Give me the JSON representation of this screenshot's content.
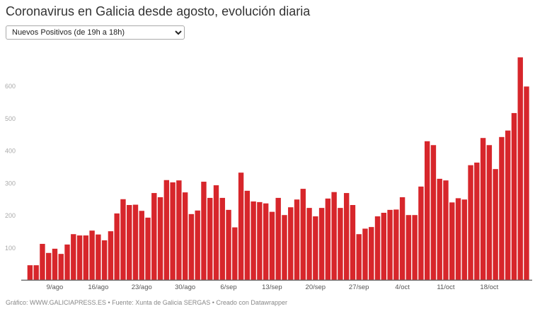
{
  "title": "Coronavirus en Galicia desde agosto, evolución diaria",
  "selector": {
    "selected": "Nuevos Positivos (de 19h a 18h)"
  },
  "footer": "Gráfico: WWW.GALICIAPRESS.ES • Fuente: Xunta de Galicia SERGAS • Creado con Datawrapper",
  "chart_data": {
    "type": "bar",
    "bar_color": "#d7262b",
    "ylim": [
      0,
      700
    ],
    "yticks": [
      100,
      200,
      300,
      400,
      500,
      600
    ],
    "grid": false,
    "x_tick_labels": [
      "9/ago",
      "16/ago",
      "23/ago",
      "30/ago",
      "6/sep",
      "13/sep",
      "20/sep",
      "27/sep",
      "4/oct",
      "11/oct",
      "18/oct"
    ],
    "x_tick_index": [
      4,
      11,
      18,
      25,
      32,
      39,
      46,
      53,
      60,
      67,
      74
    ],
    "categories_start": "5/ago",
    "categories_end": "24/oct",
    "values": [
      45,
      45,
      111,
      83,
      96,
      80,
      109,
      141,
      137,
      137,
      152,
      140,
      122,
      150,
      205,
      249,
      231,
      232,
      213,
      192,
      268,
      255,
      308,
      301,
      307,
      270,
      203,
      214,
      303,
      253,
      292,
      253,
      216,
      162,
      331,
      275,
      242,
      240,
      236,
      210,
      253,
      200,
      224,
      248,
      281,
      222,
      196,
      222,
      251,
      271,
      222,
      268,
      231,
      141,
      158,
      163,
      196,
      207,
      216,
      217,
      255,
      200,
      200,
      288,
      428,
      416,
      312,
      307,
      239,
      252,
      248,
      354,
      362,
      438,
      416,
      342,
      441,
      461,
      515,
      687,
      597
    ]
  }
}
